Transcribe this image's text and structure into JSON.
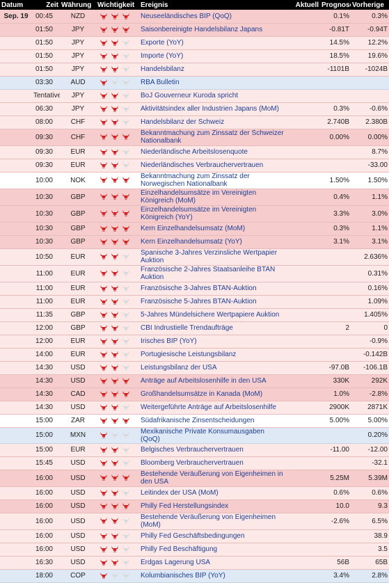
{
  "headers": {
    "datum": "Datum",
    "zeit": "Zeit",
    "waehrung": "Währung",
    "wichtigkeit": "Wichtigkeit",
    "ereignis": "Ereignis",
    "aktuell": "Aktuell",
    "prognose": "Prognose",
    "vorherige": "Vorherige"
  },
  "colors": {
    "high_row": "#f6cccc",
    "mid_row": "#fde8e8",
    "low_row": "#dfe9f6",
    "bull_active": "#d42020",
    "bull_inactive": "#d8d8d8",
    "event_link": "#1f3f96"
  },
  "rows": [
    {
      "date": "Sep. 19",
      "time": "00:45",
      "currency": "NZD",
      "importance": 3,
      "event": "Neuseeländisches BIP (QoQ)",
      "actual": "",
      "forecast": "0.1%",
      "previous": "0.3%",
      "tone": "c-red"
    },
    {
      "date": "",
      "time": "01:50",
      "currency": "JPY",
      "importance": 3,
      "event": "Saisonbereinigte Handelsbilanz Japans",
      "actual": "",
      "forecast": "-0.81T",
      "previous": "-0.94T",
      "tone": "c-red"
    },
    {
      "date": "",
      "time": "01:50",
      "currency": "JPY",
      "importance": 2,
      "event": "Exporte (YoY)",
      "actual": "",
      "forecast": "14.5%",
      "previous": "12.2%",
      "tone": "c-pink"
    },
    {
      "date": "",
      "time": "01:50",
      "currency": "JPY",
      "importance": 2,
      "event": "Importe (YoY)",
      "actual": "",
      "forecast": "18.5%",
      "previous": "19.6%",
      "tone": "c-pink"
    },
    {
      "date": "",
      "time": "01:50",
      "currency": "JPY",
      "importance": 2,
      "event": "Handelsbilanz",
      "actual": "",
      "forecast": "-1101B",
      "previous": "-1024B",
      "tone": "c-pink"
    },
    {
      "date": "",
      "time": "03:30",
      "currency": "AUD",
      "importance": 1,
      "event": "RBA Bulletin",
      "actual": "",
      "forecast": "",
      "previous": "",
      "tone": "c-blue"
    },
    {
      "date": "",
      "time": "Tentative",
      "currency": "JPY",
      "importance": 2,
      "event": "BoJ Gouverneur Kuroda spricht",
      "actual": "",
      "forecast": "",
      "previous": "",
      "tone": "c-pink"
    },
    {
      "date": "",
      "time": "06:30",
      "currency": "JPY",
      "importance": 2,
      "event": "Aktivitätsindex aller Industrien Japans (MoM)",
      "actual": "",
      "forecast": "0.3%",
      "previous": "-0.6%",
      "tone": "c-pink"
    },
    {
      "date": "",
      "time": "08:00",
      "currency": "CHF",
      "importance": 2,
      "event": "Handelsbilanz der Schweiz",
      "actual": "",
      "forecast": "2.740B",
      "previous": "2.380B",
      "tone": "c-pink"
    },
    {
      "date": "",
      "time": "09:30",
      "currency": "CHF",
      "importance": 3,
      "event": "Bekanntmachung zum Zinssatz der Schweizer Nationalbank",
      "actual": "",
      "forecast": "0.00%",
      "previous": "0.00%",
      "tone": "c-red",
      "tall": true
    },
    {
      "date": "",
      "time": "09:30",
      "currency": "EUR",
      "importance": 2,
      "event": "Niederländische Arbeitslosenquote",
      "actual": "",
      "forecast": "",
      "previous": "8.7%",
      "tone": "c-pink"
    },
    {
      "date": "",
      "time": "09:30",
      "currency": "EUR",
      "importance": 2,
      "event": "Niederländisches Verbrauchervertrauen",
      "actual": "",
      "forecast": "",
      "previous": "-33.00",
      "tone": "c-pink"
    },
    {
      "date": "",
      "time": "10:00",
      "currency": "NOK",
      "importance": 3,
      "event": "Bekanntmachung zum Zinssatz der Norwegischen Nationalbank",
      "actual": "",
      "forecast": "1.50%",
      "previous": "1.50%",
      "tone": "c-white",
      "tall": true
    },
    {
      "date": "",
      "time": "10:30",
      "currency": "GBP",
      "importance": 3,
      "event": "Einzelhandelsumsätze im Vereinigten Königreich (MoM)",
      "actual": "",
      "forecast": "0.4%",
      "previous": "1.1%",
      "tone": "c-red",
      "tall": true
    },
    {
      "date": "",
      "time": "10:30",
      "currency": "GBP",
      "importance": 3,
      "event": "Einzelhandelsumsätze im Vereinigten Königreich (YoY)",
      "actual": "",
      "forecast": "3.3%",
      "previous": "3.0%",
      "tone": "c-red",
      "tall": true
    },
    {
      "date": "",
      "time": "10:30",
      "currency": "GBP",
      "importance": 3,
      "event": "Kern Einzelhandelsumsatz (MoM)",
      "actual": "",
      "forecast": "0.3%",
      "previous": "1.1%",
      "tone": "c-red"
    },
    {
      "date": "",
      "time": "10:30",
      "currency": "GBP",
      "importance": 3,
      "event": "Kern Einzelhandelsumsatz (YoY)",
      "actual": "",
      "forecast": "3.1%",
      "previous": "3.1%",
      "tone": "c-red"
    },
    {
      "date": "",
      "time": "10:50",
      "currency": "EUR",
      "importance": 2,
      "event": "Spanische 3-Jahres Verzinsliche Wertpapier Auktion",
      "actual": "",
      "forecast": "",
      "previous": "2.636%",
      "tone": "c-pink",
      "tall": true
    },
    {
      "date": "",
      "time": "11:00",
      "currency": "EUR",
      "importance": 2,
      "event": "Französische 2-Jahres Staatsanleihe BTAN Auktion",
      "actual": "",
      "forecast": "",
      "previous": "0.31%",
      "tone": "c-pink",
      "tall": true
    },
    {
      "date": "",
      "time": "11:00",
      "currency": "EUR",
      "importance": 2,
      "event": "Französische 3-Jahres BTAN-Auktion",
      "actual": "",
      "forecast": "",
      "previous": "0.16%",
      "tone": "c-pink"
    },
    {
      "date": "",
      "time": "11:00",
      "currency": "EUR",
      "importance": 2,
      "event": "Französische 5-Jahres BTAN-Auktion",
      "actual": "",
      "forecast": "",
      "previous": "1.09%",
      "tone": "c-pink"
    },
    {
      "date": "",
      "time": "11:35",
      "currency": "GBP",
      "importance": 2,
      "event": "5-Jahres Mündelsichere Wertpapiere Auktion",
      "actual": "",
      "forecast": "",
      "previous": "1.405%",
      "tone": "c-pink"
    },
    {
      "date": "",
      "time": "12:00",
      "currency": "GBP",
      "importance": 2,
      "event": "CBI Indrustielle Trendaufträge",
      "actual": "",
      "forecast": "2",
      "previous": "0",
      "tone": "c-pink"
    },
    {
      "date": "",
      "time": "12:00",
      "currency": "EUR",
      "importance": 2,
      "event": "Irisches BIP (YoY)",
      "actual": "",
      "forecast": "",
      "previous": "-0.9%",
      "tone": "c-pink"
    },
    {
      "date": "",
      "time": "14:00",
      "currency": "EUR",
      "importance": 2,
      "event": "Portugiesische Leistungsbilanz",
      "actual": "",
      "forecast": "",
      "previous": "-0.142B",
      "tone": "c-pink"
    },
    {
      "date": "",
      "time": "14:30",
      "currency": "USD",
      "importance": 2,
      "event": "Leistungsbilanz der USA",
      "actual": "",
      "forecast": "-97.0B",
      "previous": "-106.1B",
      "tone": "c-pink"
    },
    {
      "date": "",
      "time": "14:30",
      "currency": "USD",
      "importance": 3,
      "event": "Anträge auf Arbeitslosenhilfe in den USA",
      "actual": "",
      "forecast": "330K",
      "previous": "292K",
      "tone": "c-red"
    },
    {
      "date": "",
      "time": "14:30",
      "currency": "CAD",
      "importance": 3,
      "event": "Großhandelsumsätze in Kanada (MoM)",
      "actual": "",
      "forecast": "1.0%",
      "previous": "-2.8%",
      "tone": "c-red"
    },
    {
      "date": "",
      "time": "14:30",
      "currency": "USD",
      "importance": 2,
      "event": "Weitergeführte Anträge auf Arbeitslosenhilfe",
      "actual": "",
      "forecast": "2900K",
      "previous": "2871K",
      "tone": "c-pink"
    },
    {
      "date": "",
      "time": "15:00",
      "currency": "ZAR",
      "importance": 3,
      "event": "Südafrikanische Zinsentscheidungen",
      "actual": "",
      "forecast": "5.00%",
      "previous": "5.00%",
      "tone": "c-white"
    },
    {
      "date": "",
      "time": "15:00",
      "currency": "MXN",
      "importance": 1,
      "event": "Mexikanische Private Konsumausgaben (QoQ)",
      "actual": "",
      "forecast": "",
      "previous": "0.20%",
      "tone": "c-blue"
    },
    {
      "date": "",
      "time": "15:00",
      "currency": "EUR",
      "importance": 2,
      "event": "Belgisches Verbrauchervertrauen",
      "actual": "",
      "forecast": "-11.00",
      "previous": "-12.00",
      "tone": "c-pink"
    },
    {
      "date": "",
      "time": "15:45",
      "currency": "USD",
      "importance": 2,
      "event": "Bloomberg Verbrauchervertrauen",
      "actual": "",
      "forecast": "",
      "previous": "-32.1",
      "tone": "c-pink"
    },
    {
      "date": "",
      "time": "16:00",
      "currency": "USD",
      "importance": 3,
      "event": "Bestehende Veräußerung von Eigenheimen in den USA",
      "actual": "",
      "forecast": "5.25M",
      "previous": "5.39M",
      "tone": "c-red",
      "tall": true
    },
    {
      "date": "",
      "time": "16:00",
      "currency": "USD",
      "importance": 2,
      "event": "Leitindex der USA (MoM)",
      "actual": "",
      "forecast": "0.6%",
      "previous": "0.6%",
      "tone": "c-pink"
    },
    {
      "date": "",
      "time": "16:00",
      "currency": "USD",
      "importance": 3,
      "event": "Philly Fed Herstellungsindex",
      "actual": "",
      "forecast": "10.0",
      "previous": "9.3",
      "tone": "c-red"
    },
    {
      "date": "",
      "time": "16:00",
      "currency": "USD",
      "importance": 2,
      "event": "Bestehende Veräußerung von Eigenheimen (MoM)",
      "actual": "",
      "forecast": "-2.6%",
      "previous": "6.5%",
      "tone": "c-pink",
      "tall": true
    },
    {
      "date": "",
      "time": "16:00",
      "currency": "USD",
      "importance": 2,
      "event": "Philly Fed Geschäftsbedingungen",
      "actual": "",
      "forecast": "",
      "previous": "38.9",
      "tone": "c-pink"
    },
    {
      "date": "",
      "time": "16:00",
      "currency": "USD",
      "importance": 2,
      "event": "Philly Fed Beschäftigung",
      "actual": "",
      "forecast": "",
      "previous": "3.5",
      "tone": "c-pink"
    },
    {
      "date": "",
      "time": "16:30",
      "currency": "USD",
      "importance": 2,
      "event": "Erdgas Lagerung USA",
      "actual": "",
      "forecast": "56B",
      "previous": "65B",
      "tone": "c-pink"
    },
    {
      "date": "",
      "time": "18:00",
      "currency": "COP",
      "importance": 1,
      "event": "Kolumbianisches BIP (YoY)",
      "actual": "",
      "forecast": "3.4%",
      "previous": "2.8%",
      "tone": "c-blue"
    }
  ]
}
